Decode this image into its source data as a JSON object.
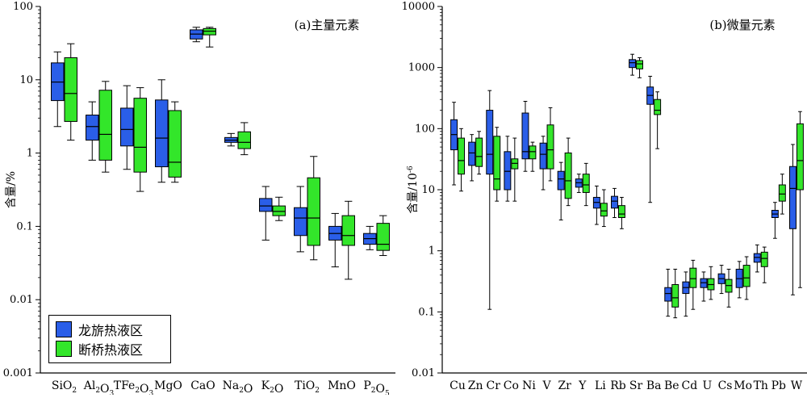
{
  "colors": {
    "longlv": "#2a5ee8",
    "duanqiao": "#33e62a",
    "axis": "#000000"
  },
  "legend": {
    "series_a": "龙旂热液区",
    "series_b": "断桥热液区"
  },
  "chart_data": [
    {
      "type": "box",
      "panel_title": "(a)主量元素",
      "ylabel": "含量/%",
      "yscale": "log",
      "ylim": [
        0.001,
        100
      ],
      "yticks": [
        "0.001",
        "0.01",
        "0.1",
        "1",
        "10",
        "100"
      ],
      "categories": [
        {
          "name": "SiO",
          "sub": "2"
        },
        {
          "name": "Al",
          "sub": "2",
          "name2": "O",
          "sub2": "3"
        },
        {
          "name": "TFe",
          "sub": "2",
          "name2": "O",
          "sub2": "3"
        },
        {
          "name": "MgO"
        },
        {
          "name": "CaO"
        },
        {
          "name": "Na",
          "sub": "2",
          "name2": "O"
        },
        {
          "name": "K",
          "sub": "2",
          "name2": "O"
        },
        {
          "name": "TiO",
          "sub": "2"
        },
        {
          "name": "MnO"
        },
        {
          "name": "P",
          "sub": "2",
          "name2": "O",
          "sub2": "5"
        }
      ],
      "series": [
        {
          "name": "龙旂热液区",
          "boxes": [
            [
              2.3,
              5.2,
              9.3,
              17,
              24
            ],
            [
              0.8,
              1.5,
              2.3,
              3.3,
              5
            ],
            [
              0.6,
              1.25,
              2.1,
              4.1,
              8.3
            ],
            [
              0.4,
              0.65,
              1.6,
              5.3,
              10
            ],
            [
              33,
              36,
              42,
              48,
              52
            ],
            [
              1.25,
              1.4,
              1.5,
              1.63,
              1.85
            ],
            [
              0.065,
              0.16,
              0.19,
              0.24,
              0.35
            ],
            [
              0.045,
              0.075,
              0.13,
              0.18,
              0.35
            ],
            [
              0.028,
              0.065,
              0.08,
              0.1,
              0.15
            ],
            [
              0.048,
              0.057,
              0.068,
              0.08,
              0.1
            ]
          ]
        },
        {
          "name": "断桥热液区",
          "boxes": [
            [
              1.5,
              2.7,
              6.5,
              20,
              31
            ],
            [
              0.55,
              0.8,
              1.8,
              7.2,
              9.5
            ],
            [
              0.3,
              0.55,
              1.2,
              5.6,
              7.8
            ],
            [
              0.4,
              0.47,
              0.75,
              3.8,
              5
            ],
            [
              28,
              41,
              46,
              50,
              52
            ],
            [
              0.95,
              1.15,
              1.4,
              1.95,
              2.6
            ],
            [
              0.12,
              0.14,
              0.16,
              0.19,
              0.25
            ],
            [
              0.035,
              0.055,
              0.13,
              0.46,
              0.9
            ],
            [
              0.019,
              0.055,
              0.075,
              0.14,
              0.22
            ],
            [
              0.04,
              0.047,
              0.057,
              0.11,
              0.14
            ]
          ]
        }
      ]
    },
    {
      "type": "box",
      "panel_title": "(b)微量元素",
      "ylabel": "含量/10",
      "ylabel_sup": "-6",
      "yscale": "log",
      "ylim": [
        0.01,
        10000
      ],
      "yticks": [
        "0.01",
        "0.1",
        "1",
        "10",
        "100",
        "1000",
        "10000"
      ],
      "categories": [
        {
          "name": "Cu"
        },
        {
          "name": "Zn"
        },
        {
          "name": "Cr"
        },
        {
          "name": "Co"
        },
        {
          "name": "Ni"
        },
        {
          "name": "V"
        },
        {
          "name": "Zr"
        },
        {
          "name": "Y"
        },
        {
          "name": "Li"
        },
        {
          "name": "Rb"
        },
        {
          "name": "Sr"
        },
        {
          "name": "Ba"
        },
        {
          "name": "Be"
        },
        {
          "name": "Cd"
        },
        {
          "name": "U"
        },
        {
          "name": "Cs"
        },
        {
          "name": "Mo"
        },
        {
          "name": "Th"
        },
        {
          "name": "Pb"
        },
        {
          "name": "W"
        }
      ],
      "series": [
        {
          "name": "龙旂热液区",
          "boxes": [
            [
              12,
              45,
              80,
              140,
              270
            ],
            [
              14,
              25,
              40,
              60,
              80
            ],
            [
              0.11,
              18,
              38,
              200,
              420
            ],
            [
              6.5,
              10,
              20,
              42,
              75
            ],
            [
              20,
              32,
              42,
              180,
              280
            ],
            [
              10,
              22,
              38,
              58,
              75
            ],
            [
              3.2,
              10,
              15,
              20,
              28
            ],
            [
              9,
              11,
              13,
              15,
              18
            ],
            [
              2.7,
              5,
              6.2,
              7.5,
              11.5
            ],
            [
              3.5,
              5,
              6.5,
              7.8,
              10.5
            ],
            [
              750,
              1000,
              1200,
              1350,
              1650
            ],
            [
              6.2,
              250,
              350,
              480,
              720
            ],
            [
              0.085,
              0.15,
              0.2,
              0.25,
              0.5
            ],
            [
              0.085,
              0.2,
              0.25,
              0.31,
              0.45
            ],
            [
              0.15,
              0.25,
              0.3,
              0.35,
              0.45
            ],
            [
              0.2,
              0.29,
              0.35,
              0.42,
              0.58
            ],
            [
              0.17,
              0.25,
              0.35,
              0.5,
              0.67
            ],
            [
              0.45,
              0.65,
              0.78,
              0.9,
              1.25
            ],
            [
              1.6,
              3.5,
              4,
              4.6,
              6.2
            ],
            [
              0.19,
              2.3,
              10.5,
              24,
              55
            ]
          ]
        },
        {
          "name": "断桥热液区",
          "boxes": [
            [
              9.5,
              18,
              30,
              70,
              100
            ],
            [
              18,
              24,
              35,
              70,
              90
            ],
            [
              6.5,
              10,
              15,
              75,
              105
            ],
            [
              6.5,
              22,
              27,
              32,
              70
            ],
            [
              20,
              32,
              42,
              52,
              60
            ],
            [
              14,
              22,
              45,
              115,
              220
            ],
            [
              5.5,
              7.2,
              14,
              40,
              70
            ],
            [
              5.5,
              9,
              12,
              18,
              27
            ],
            [
              2.5,
              3.7,
              4.5,
              6,
              10
            ],
            [
              2.3,
              3.5,
              4,
              5.5,
              7.5
            ],
            [
              680,
              950,
              1150,
              1300,
              1450
            ],
            [
              47,
              170,
              200,
              300,
              400
            ],
            [
              0.08,
              0.12,
              0.17,
              0.28,
              0.5
            ],
            [
              0.11,
              0.25,
              0.35,
              0.52,
              0.7
            ],
            [
              0.16,
              0.23,
              0.28,
              0.35,
              0.55
            ],
            [
              0.12,
              0.21,
              0.27,
              0.34,
              0.5
            ],
            [
              0.16,
              0.26,
              0.36,
              0.58,
              0.8
            ],
            [
              0.3,
              0.55,
              0.75,
              0.95,
              1.15
            ],
            [
              4,
              6.5,
              8.5,
              12,
              18
            ],
            [
              0.25,
              10,
              30,
              120,
              190
            ]
          ]
        }
      ]
    }
  ]
}
